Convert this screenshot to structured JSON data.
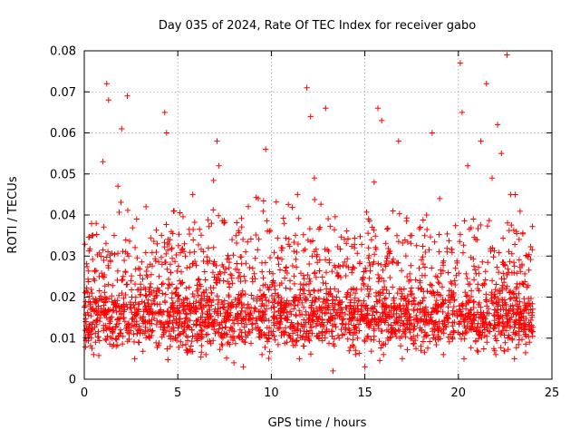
{
  "chart_data": {
    "type": "scatter",
    "title": "Day 035 of 2024, Rate Of TEC Index for receiver gabo",
    "xlabel": "GPS time / hours",
    "ylabel": "ROTI / TECUs",
    "xlim": [
      0,
      25
    ],
    "ylim": [
      0,
      0.08
    ],
    "xticks": [
      0,
      5,
      10,
      15,
      20,
      25
    ],
    "xtick_labels": [
      "0",
      "5",
      "10",
      "15",
      "20",
      "25"
    ],
    "yticks": [
      0,
      0.01,
      0.02,
      0.03,
      0.04,
      0.05,
      0.06,
      0.07,
      0.08
    ],
    "ytick_labels": [
      "0",
      "0.01",
      "0.02",
      "0.03",
      "0.04",
      "0.05",
      "0.06",
      "0.07",
      "0.08"
    ],
    "grid": true,
    "marker": "plus",
    "color": "#ff0000",
    "series": [
      {
        "points": [
          [
            0.2,
            0.011
          ],
          [
            0.4,
            0.017
          ],
          [
            0.6,
            0.009
          ],
          [
            0.8,
            0.025
          ],
          [
            1.0,
            0.053
          ],
          [
            1.2,
            0.072
          ],
          [
            1.3,
            0.068
          ],
          [
            1.6,
            0.035
          ],
          [
            1.8,
            0.047
          ],
          [
            2.0,
            0.061
          ],
          [
            2.2,
            0.031
          ],
          [
            2.3,
            0.069
          ],
          [
            2.5,
            0.024
          ],
          [
            2.8,
            0.039
          ],
          [
            3.0,
            0.015
          ],
          [
            3.3,
            0.042
          ],
          [
            3.6,
            0.021
          ],
          [
            3.9,
            0.033
          ],
          [
            4.2,
            0.012
          ],
          [
            4.3,
            0.065
          ],
          [
            4.4,
            0.06
          ],
          [
            4.6,
            0.028
          ],
          [
            4.8,
            0.041
          ],
          [
            5.1,
            0.018
          ],
          [
            5.4,
            0.03
          ],
          [
            5.8,
            0.045
          ],
          [
            6.1,
            0.022
          ],
          [
            6.4,
            0.013
          ],
          [
            6.8,
            0.038
          ],
          [
            7.1,
            0.058
          ],
          [
            7.2,
            0.052
          ],
          [
            7.5,
            0.026
          ],
          [
            7.9,
            0.034
          ],
          [
            8.2,
            0.016
          ],
          [
            8.6,
            0.009
          ],
          [
            9.0,
            0.027
          ],
          [
            9.3,
            0.044
          ],
          [
            9.7,
            0.056
          ],
          [
            9.9,
            0.036
          ],
          [
            10.2,
            0.019
          ],
          [
            10.6,
            0.032
          ],
          [
            11.0,
            0.024
          ],
          [
            11.4,
            0.045
          ],
          [
            11.9,
            0.071
          ],
          [
            12.1,
            0.064
          ],
          [
            12.3,
            0.049
          ],
          [
            12.6,
            0.037
          ],
          [
            12.9,
            0.066
          ],
          [
            13.1,
            0.029
          ],
          [
            13.5,
            0.02
          ],
          [
            13.9,
            0.011
          ],
          [
            14.3,
            0.026
          ],
          [
            14.8,
            0.018
          ],
          [
            15.2,
            0.039
          ],
          [
            15.5,
            0.048
          ],
          [
            15.7,
            0.066
          ],
          [
            15.9,
            0.063
          ],
          [
            16.2,
            0.03
          ],
          [
            16.5,
            0.041
          ],
          [
            16.8,
            0.058
          ],
          [
            17.1,
            0.022
          ],
          [
            17.5,
            0.035
          ],
          [
            17.9,
            0.027
          ],
          [
            18.3,
            0.04
          ],
          [
            18.6,
            0.06
          ],
          [
            19.0,
            0.044
          ],
          [
            19.4,
            0.031
          ],
          [
            19.8,
            0.024
          ],
          [
            20.1,
            0.077
          ],
          [
            20.2,
            0.065
          ],
          [
            20.5,
            0.052
          ],
          [
            20.8,
            0.039
          ],
          [
            21.2,
            0.058
          ],
          [
            21.5,
            0.072
          ],
          [
            21.8,
            0.049
          ],
          [
            22.1,
            0.062
          ],
          [
            22.3,
            0.055
          ],
          [
            22.6,
            0.079
          ],
          [
            22.8,
            0.045
          ],
          [
            23.1,
            0.036
          ],
          [
            23.4,
            0.028
          ],
          [
            23.7,
            0.018
          ],
          [
            23.9,
            0.012
          ],
          [
            0.5,
            0.006
          ],
          [
            1.5,
            0.008
          ],
          [
            2.7,
            0.005
          ],
          [
            3.5,
            0.01
          ],
          [
            5.5,
            0.007
          ],
          [
            6.5,
            0.006
          ],
          [
            8.0,
            0.004
          ],
          [
            8.5,
            0.003
          ],
          [
            9.5,
            0.006
          ],
          [
            11.5,
            0.005
          ],
          [
            13.3,
            0.002
          ],
          [
            14.5,
            0.007
          ],
          [
            15.0,
            0.003
          ],
          [
            16.0,
            0.006
          ],
          [
            17.0,
            0.005
          ],
          [
            18.0,
            0.008
          ],
          [
            19.2,
            0.006
          ],
          [
            20.3,
            0.005
          ],
          [
            21.0,
            0.007
          ],
          [
            22.0,
            0.006
          ],
          [
            23.0,
            0.005
          ],
          [
            23.8,
            0.009
          ]
        ]
      }
    ]
  }
}
